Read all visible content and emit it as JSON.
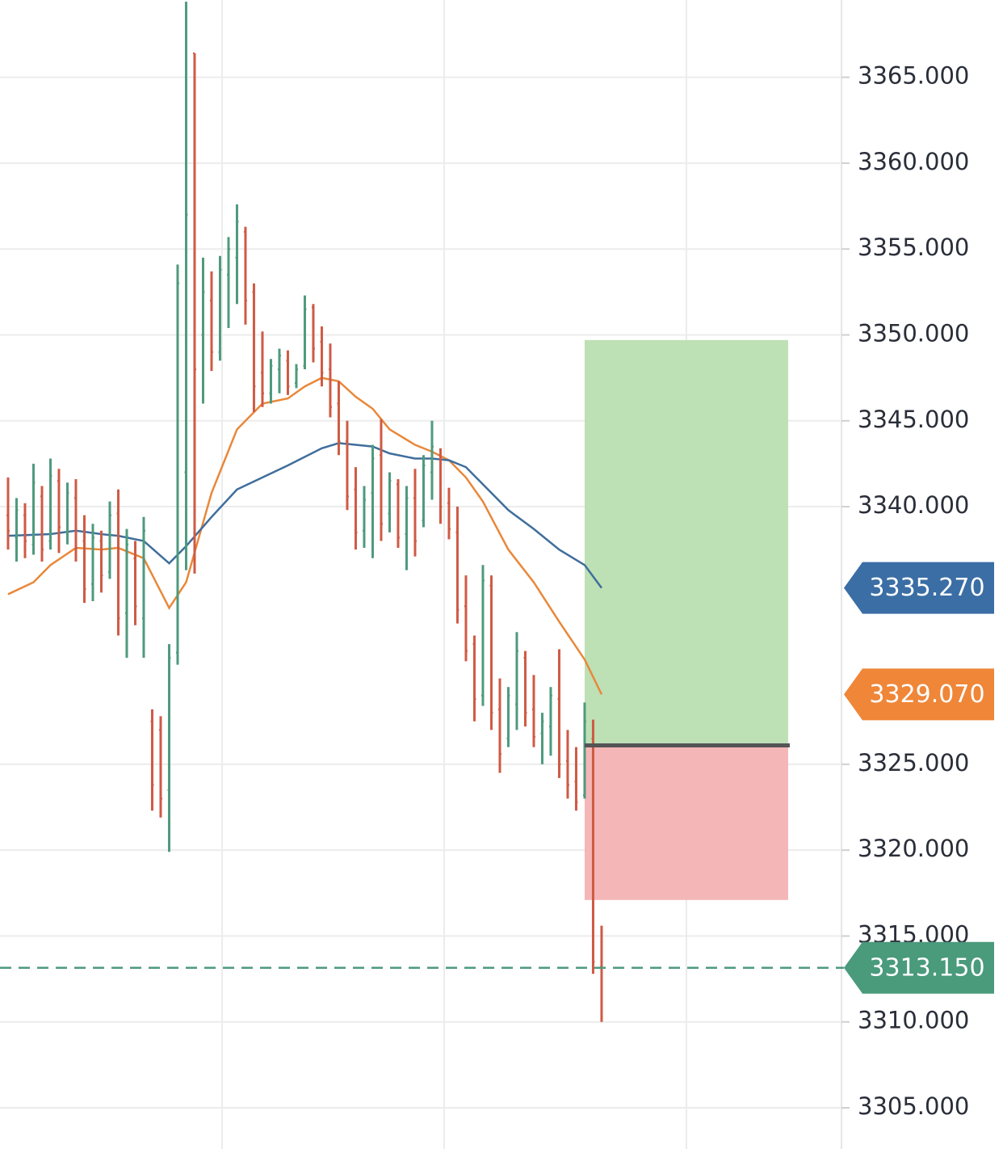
{
  "chart_data": {
    "type": "ohlc",
    "ylim": [
      3302.6,
      3369.5
    ],
    "yticks": [
      {
        "value": 3305,
        "label": "3305.000"
      },
      {
        "value": 3310,
        "label": "3310.000"
      },
      {
        "value": 3315,
        "label": "3315.000"
      },
      {
        "value": 3320,
        "label": "3320.000"
      },
      {
        "value": 3325,
        "label": "3325.000"
      },
      {
        "value": 3340,
        "label": "3340.000"
      },
      {
        "value": 3345,
        "label": "3345.000"
      },
      {
        "value": 3350,
        "label": "3350.000"
      },
      {
        "value": 3355,
        "label": "3355.000"
      },
      {
        "value": 3360,
        "label": "3360.000"
      },
      {
        "value": 3365,
        "label": "3365.000"
      }
    ],
    "xlim": [
      -0.95,
      98.29
    ],
    "xticks": [
      25.24,
      51.43,
      80
    ],
    "grid": true,
    "up_color": "#4e9a7d",
    "down_color": "#cf5a44",
    "bars": [
      [
        3339.5,
        3341.7,
        3337.5,
        3338.6
      ],
      [
        3338.2,
        3340.5,
        3336.8,
        3339.8
      ],
      [
        3339.5,
        3340.2,
        3337,
        3338
      ],
      [
        3337.8,
        3342.5,
        3337.2,
        3341.4
      ],
      [
        3340.6,
        3341.2,
        3336.8,
        3337.5
      ],
      [
        3338,
        3342.8,
        3337.5,
        3341.8
      ],
      [
        3341.5,
        3342.2,
        3337.3,
        3338.8
      ],
      [
        3338.5,
        3341.4,
        3337.8,
        3340.8
      ],
      [
        3340.5,
        3341.6,
        3336.8,
        3337.6
      ],
      [
        3338,
        3339.5,
        3334.4,
        3335.2
      ],
      [
        3335.5,
        3339,
        3334.5,
        3338.2
      ],
      [
        3338,
        3338.6,
        3335,
        3336
      ],
      [
        3336.2,
        3340.3,
        3335.8,
        3339.5
      ],
      [
        3339.6,
        3341,
        3332.5,
        3333.5
      ],
      [
        3333.8,
        3338.7,
        3331.2,
        3337.8
      ],
      [
        3337,
        3338,
        3333.1,
        3334.2
      ],
      [
        3333.5,
        3339.4,
        3331.2,
        3338.6
      ],
      [
        3327.5,
        3328.2,
        3322.3,
        3323.8
      ],
      [
        3327,
        3327.8,
        3321.9,
        3323
      ],
      [
        3323.5,
        3332,
        3319.9,
        3331.2
      ],
      [
        3331.5,
        3354.1,
        3330.8,
        3353
      ],
      [
        3342,
        3369.4,
        3336.3,
        3357
      ],
      [
        3366.4,
        3366.4,
        3336.1,
        3348
      ],
      [
        3350,
        3354.5,
        3346,
        3352.5
      ],
      [
        3352,
        3353.7,
        3347.9,
        3349
      ],
      [
        3349,
        3354.6,
        3348.5,
        3353.8
      ],
      [
        3353.5,
        3355.7,
        3350.4,
        3355
      ],
      [
        3354.5,
        3357.6,
        3351.8,
        3356.6
      ],
      [
        3356,
        3356.3,
        3350.6,
        3352
      ],
      [
        3352.5,
        3353,
        3345.5,
        3347
      ],
      [
        3347.8,
        3350.2,
        3345.8,
        3346.6
      ],
      [
        3346.6,
        3348.6,
        3346,
        3348.2
      ],
      [
        3348,
        3349.2,
        3346.6,
        3348.8
      ],
      [
        3348.5,
        3349.1,
        3346.5,
        3347
      ],
      [
        3347.2,
        3348.3,
        3346.9,
        3348
      ],
      [
        3348.2,
        3352.3,
        3348,
        3351.5
      ],
      [
        3351.6,
        3351.8,
        3348.4,
        3349.2
      ],
      [
        3349.6,
        3350.5,
        3347,
        3347.8
      ],
      [
        3348,
        3349.5,
        3345.2,
        3345.8
      ],
      [
        3346,
        3347.3,
        3343,
        3343.8
      ],
      [
        3343.8,
        3345,
        3339.8,
        3340.6
      ],
      [
        3341,
        3342.3,
        3337.5,
        3338.5
      ],
      [
        3338.6,
        3341.2,
        3337.6,
        3340.4
      ],
      [
        3340.8,
        3343.6,
        3337,
        3342.8
      ],
      [
        3343,
        3345.1,
        3338,
        3339
      ],
      [
        3339.6,
        3342,
        3338.5,
        3341.5
      ],
      [
        3341.3,
        3341.6,
        3337.6,
        3338.2
      ],
      [
        3338.4,
        3341.2,
        3336.3,
        3340.5
      ],
      [
        3340.5,
        3342.2,
        3337.1,
        3338
      ],
      [
        3339.2,
        3343,
        3338.8,
        3342.4
      ],
      [
        3342,
        3345,
        3340.4,
        3343.5
      ],
      [
        3343,
        3343.4,
        3339,
        3340
      ],
      [
        3340.2,
        3341.1,
        3338.1,
        3338.7
      ],
      [
        3338.5,
        3340,
        3333.2,
        3334
      ],
      [
        3334.2,
        3336,
        3331,
        3331.6
      ],
      [
        3332,
        3332.5,
        3327.5,
        3328.8
      ],
      [
        3329,
        3336.6,
        3328.4,
        3335.7
      ],
      [
        3335.4,
        3336,
        3327,
        3328
      ],
      [
        3328.2,
        3330,
        3324.5,
        3325.6
      ],
      [
        3326.5,
        3329.5,
        3326,
        3329
      ],
      [
        3328.5,
        3332.7,
        3327,
        3331.6
      ],
      [
        3331.2,
        3331.6,
        3327.2,
        3328
      ],
      [
        3328.2,
        3330.2,
        3326,
        3326.6
      ],
      [
        3326.8,
        3328,
        3325,
        3327.5
      ],
      [
        3327.2,
        3329.5,
        3325.5,
        3329
      ],
      [
        3328.8,
        3331.7,
        3324.2,
        3325
      ],
      [
        3325.2,
        3327,
        3323,
        3323.8
      ],
      [
        3324,
        3326,
        3322.3,
        3322.8
      ],
      [
        3323.2,
        3328.6,
        3323,
        3327.5
      ],
      [
        3326.5,
        3327.6,
        3312.8,
        3313.5
      ],
      [
        3313.2,
        3315.6,
        3310,
        3313.15
      ]
    ],
    "series": [
      {
        "color": "#e8883a",
        "x": [
          0,
          3,
          5,
          8,
          11,
          13,
          16,
          19,
          21,
          24,
          27,
          30,
          33,
          35,
          37,
          39,
          41,
          43,
          45,
          48,
          50,
          52,
          54,
          56,
          59,
          62,
          65,
          68,
          70
        ],
        "values": [
          3334.9,
          3335.6,
          3336.6,
          3337.6,
          3337.5,
          3337.6,
          3337.0,
          3334.1,
          3335.6,
          3340.8,
          3344.5,
          3346.0,
          3346.3,
          3347.0,
          3347.5,
          3347.3,
          3346.4,
          3345.7,
          3344.5,
          3343.6,
          3343.2,
          3342.7,
          3341.7,
          3340.3,
          3337.5,
          3335.6,
          3333.3,
          3331.1,
          3329.07
        ]
      },
      {
        "color": "#3f6e9c",
        "x": [
          0,
          5,
          8,
          11,
          13,
          16,
          19,
          21,
          24,
          27,
          30,
          33,
          35,
          37,
          39,
          41,
          43,
          45,
          48,
          50,
          52,
          54,
          56,
          59,
          62,
          65,
          68,
          70
        ],
        "values": [
          3338.3,
          3338.4,
          3338.6,
          3338.4,
          3338.3,
          3338.0,
          3336.7,
          3337.7,
          3339.4,
          3341.0,
          3341.7,
          3342.4,
          3342.9,
          3343.4,
          3343.7,
          3343.6,
          3343.5,
          3343.1,
          3342.8,
          3342.8,
          3342.7,
          3342.3,
          3341.3,
          3339.8,
          3338.7,
          3337.5,
          3336.6,
          3335.27
        ]
      }
    ],
    "position": {
      "x_start": 68,
      "x_end": 92,
      "target": 3349.7,
      "entry": 3326.1,
      "stop": 3317.1,
      "profit_color": "#bde0b5",
      "loss_color": "#f4b6b6"
    },
    "last_price": {
      "value": 3313.15,
      "color": "#4e9a7d"
    },
    "price_labels": [
      {
        "value": 3335.27,
        "label": "3335.270",
        "color": "#3a6ea5"
      },
      {
        "value": 3329.07,
        "label": "3329.070",
        "color": "#ef8638"
      },
      {
        "value": 3313.15,
        "label": "3313.150",
        "color": "#4a9a7c"
      }
    ]
  }
}
